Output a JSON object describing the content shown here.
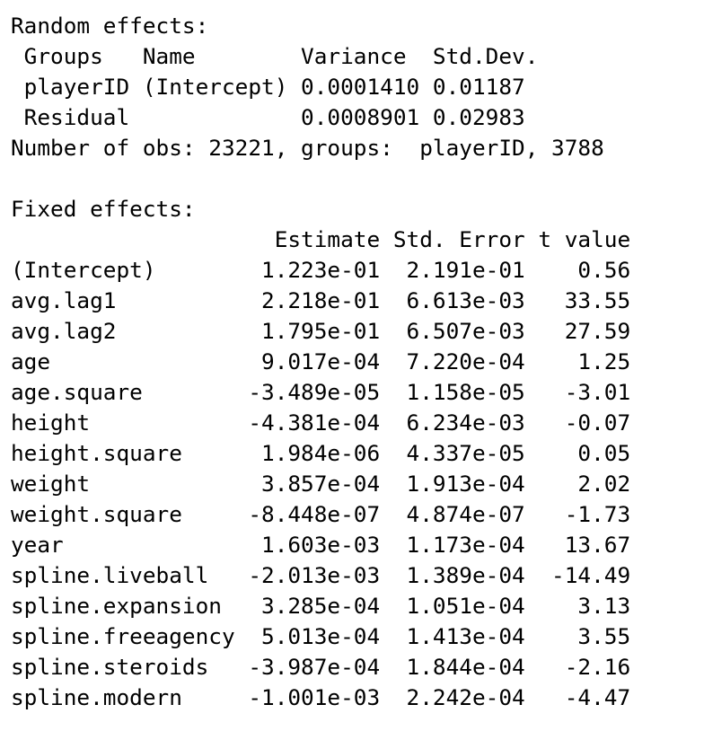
{
  "random_effects": {
    "heading": "Random effects:",
    "columns": [
      "Groups",
      "Name",
      "Variance",
      "Std.Dev."
    ],
    "rows": [
      {
        "group": "playerID",
        "name": "(Intercept)",
        "variance": "0.0001410",
        "std_dev": "0.01187"
      },
      {
        "group": "Residual",
        "name": "",
        "variance": "0.0008901",
        "std_dev": "0.02983"
      }
    ],
    "obs_summary": {
      "label": "Number of obs:",
      "n_obs": "23221",
      "groups_label": "groups:",
      "group_name": "playerID",
      "n_groups": "3788"
    }
  },
  "fixed_effects": {
    "heading": "Fixed effects:",
    "columns": [
      "Estimate",
      "Std. Error",
      "t value"
    ],
    "rows": [
      {
        "term": "(Intercept)",
        "estimate": "1.223e-01",
        "std_error": "2.191e-01",
        "t_value": "0.56"
      },
      {
        "term": "avg.lag1",
        "estimate": "2.218e-01",
        "std_error": "6.613e-03",
        "t_value": "33.55"
      },
      {
        "term": "avg.lag2",
        "estimate": "1.795e-01",
        "std_error": "6.507e-03",
        "t_value": "27.59"
      },
      {
        "term": "age",
        "estimate": "9.017e-04",
        "std_error": "7.220e-04",
        "t_value": "1.25"
      },
      {
        "term": "age.square",
        "estimate": "-3.489e-05",
        "std_error": "1.158e-05",
        "t_value": "-3.01"
      },
      {
        "term": "height",
        "estimate": "-4.381e-04",
        "std_error": "6.234e-03",
        "t_value": "-0.07"
      },
      {
        "term": "height.square",
        "estimate": "1.984e-06",
        "std_error": "4.337e-05",
        "t_value": "0.05"
      },
      {
        "term": "weight",
        "estimate": "3.857e-04",
        "std_error": "1.913e-04",
        "t_value": "2.02"
      },
      {
        "term": "weight.square",
        "estimate": "-8.448e-07",
        "std_error": "4.874e-07",
        "t_value": "-1.73"
      },
      {
        "term": "year",
        "estimate": "1.603e-03",
        "std_error": "1.173e-04",
        "t_value": "13.67"
      },
      {
        "term": "spline.liveball",
        "estimate": "-2.013e-03",
        "std_error": "1.389e-04",
        "t_value": "-14.49"
      },
      {
        "term": "spline.expansion",
        "estimate": "3.285e-04",
        "std_error": "1.051e-04",
        "t_value": "3.13"
      },
      {
        "term": "spline.freeagency",
        "estimate": "5.013e-04",
        "std_error": "1.413e-04",
        "t_value": "3.55"
      },
      {
        "term": "spline.steroids",
        "estimate": "-3.987e-04",
        "std_error": "1.844e-04",
        "t_value": "-2.16"
      },
      {
        "term": "spline.modern",
        "estimate": "-1.001e-03",
        "std_error": "2.242e-04",
        "t_value": "-4.47"
      }
    ]
  }
}
